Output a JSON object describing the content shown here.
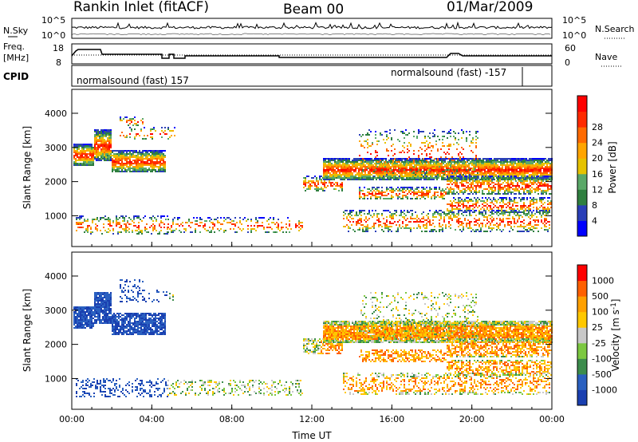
{
  "header": {
    "station": "Rankin Inlet (fitACF)",
    "beam": "Beam 00",
    "date": "01/Mar/2009"
  },
  "noise_panel": {
    "left_label": "N.Sky",
    "right_label": "N.Search",
    "yticks": [
      "10^5",
      "10^0"
    ]
  },
  "freq_panel": {
    "left_label_1": "Freq.",
    "left_label_2": "[MHz]",
    "right_label": "Nave",
    "left_ticks": [
      "18",
      "8"
    ],
    "right_ticks": [
      "60",
      "0"
    ]
  },
  "cpid_panel": {
    "label": "CPID",
    "text_1": "normalsound (fast) 157",
    "text_2": "normalsound (fast) -157"
  },
  "chart_data": [
    {
      "type": "heatmap",
      "name": "power",
      "ylabel": "Slant Range [km]",
      "yticks": [
        1000,
        2000,
        3000,
        4000
      ],
      "xticks": [
        "00:00",
        "04:00",
        "08:00",
        "12:00",
        "16:00",
        "20:00",
        "00:00"
      ],
      "colorbar": {
        "label": "Power [dB]",
        "ticks": [
          4,
          8,
          12,
          16,
          20,
          24,
          28
        ],
        "colors": [
          "#0000ff",
          "#2a3fb8",
          "#2f7f3f",
          "#5aa868",
          "#e6c200",
          "#ffa500",
          "#ff6a00",
          "#ff2a00",
          "#ff0000"
        ]
      }
    },
    {
      "type": "heatmap",
      "name": "velocity",
      "ylabel": "Slant Range [km]",
      "yticks": [
        1000,
        2000,
        3000,
        4000
      ],
      "xticks": [
        "00:00",
        "04:00",
        "08:00",
        "12:00",
        "16:00",
        "20:00",
        "00:00"
      ],
      "xlabel": "Time UT",
      "colorbar": {
        "label": "Velocity [m s",
        "label_sup": "-1",
        "label_end": "]",
        "ticks": [
          "1000",
          "500",
          "100",
          "25",
          "-25",
          "-100",
          "-500",
          "-1000"
        ],
        "colors": [
          "#1a3fb0",
          "#2a60c0",
          "#3c8c4c",
          "#7cc840",
          "#c8c8c8",
          "#ffc800",
          "#ffa000",
          "#ff6000",
          "#ff0000"
        ]
      }
    }
  ]
}
